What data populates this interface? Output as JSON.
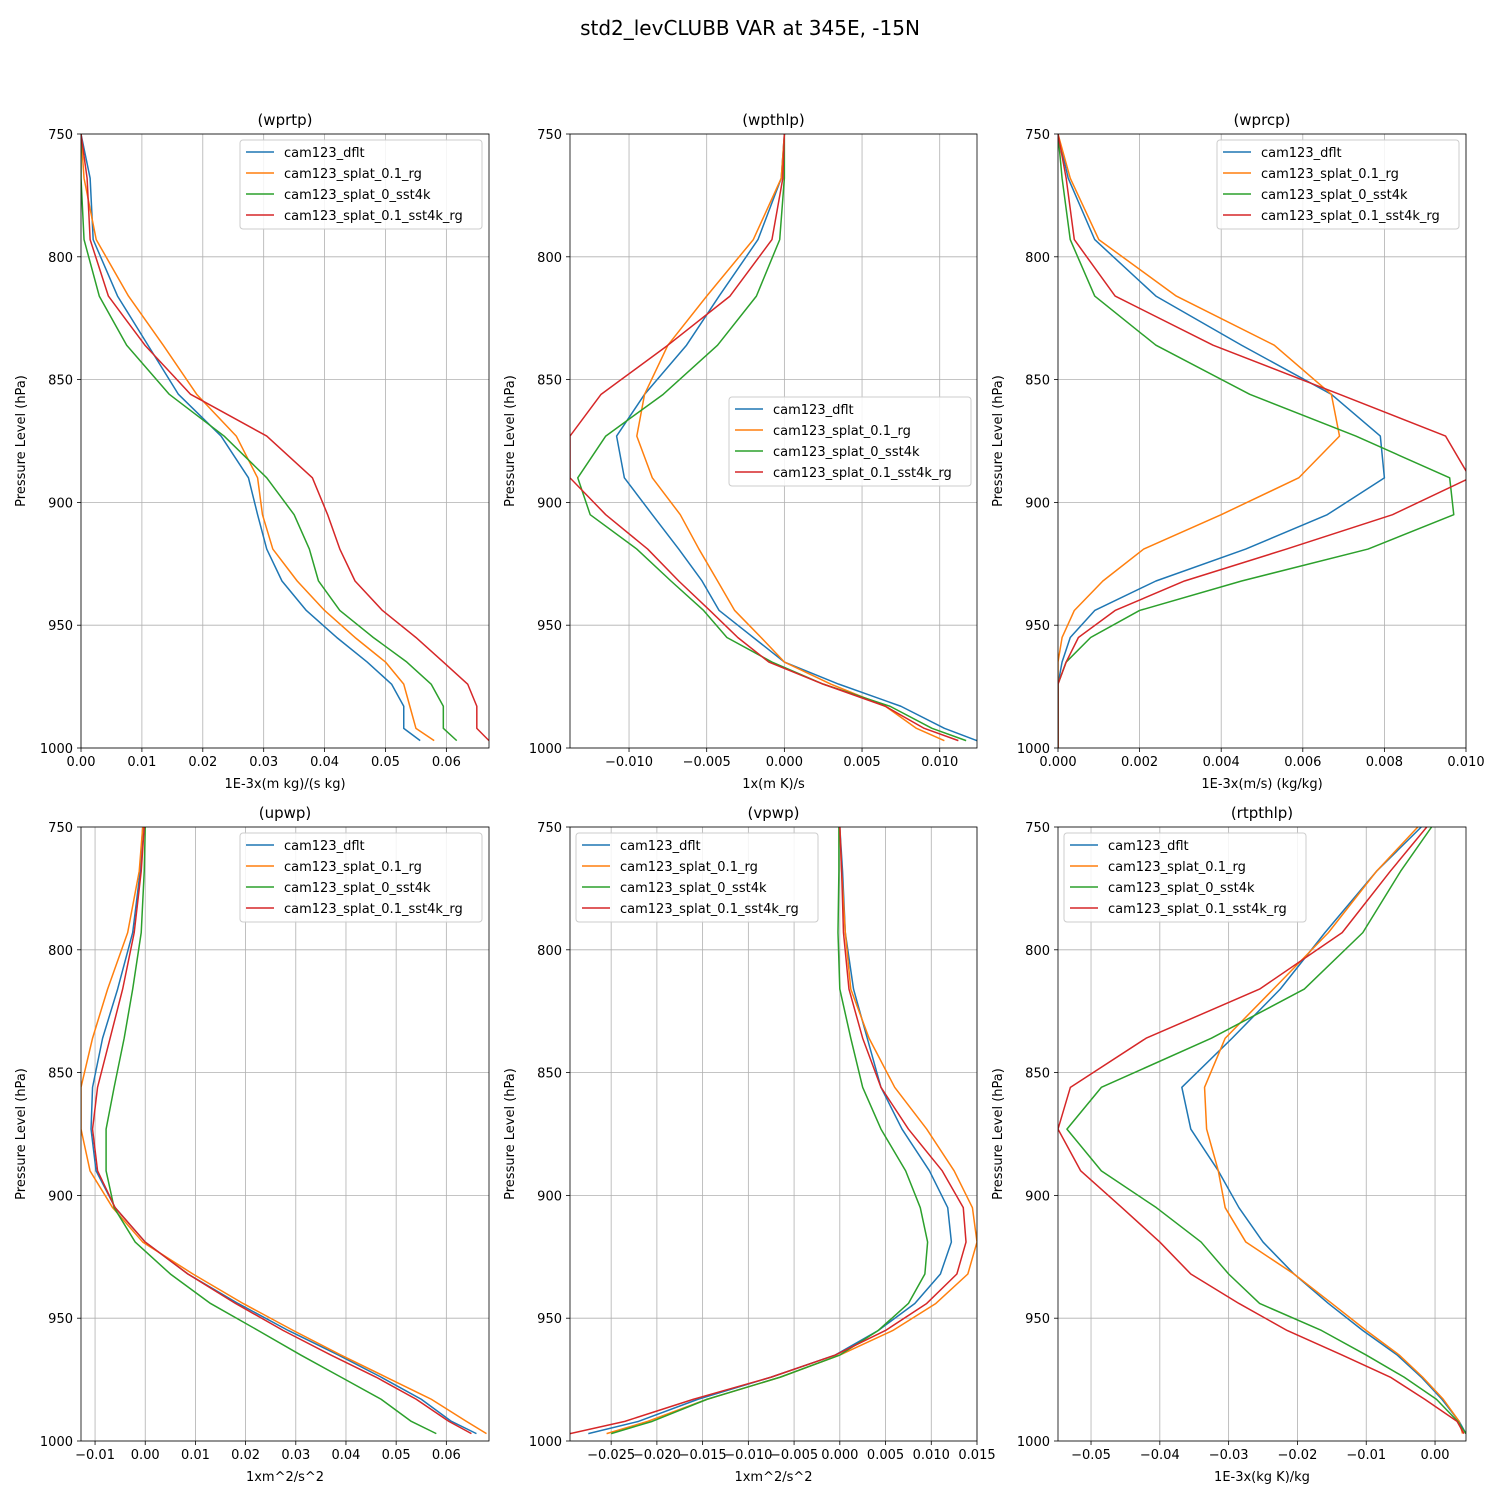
{
  "figure": {
    "suptitle": "std2_levCLUBB VAR at 345E, -15N"
  },
  "colors": {
    "cam123_dflt": "#1f77b4",
    "cam123_splat_0.1_rg": "#ff7f0e",
    "cam123_splat_0_sst4k": "#2ca02c",
    "cam123_splat_0.1_sst4k_rg": "#d62728"
  },
  "chart_data": [
    {
      "type": "line",
      "title": "(wprtp)",
      "xlabel": "1E-3x(m kg)/(s kg)",
      "ylabel": "Pressure Level (hPa)",
      "xlim": [
        0,
        0.067
      ],
      "ylim": [
        1000,
        750
      ],
      "xticks": [
        0,
        0.01,
        0.02,
        0.03,
        0.04,
        0.05,
        0.06
      ],
      "xtick_labels": [
        "0.00",
        "0.01",
        "0.02",
        "0.03",
        "0.04",
        "0.05",
        "0.06"
      ],
      "yticks": [
        750,
        800,
        850,
        900,
        950,
        1000
      ],
      "ytick_labels": [
        "750",
        "800",
        "850",
        "900",
        "950",
        "1000"
      ],
      "grid": true,
      "legend": "top-right",
      "levels": [
        750,
        768,
        793,
        816,
        836,
        856,
        873,
        890,
        905,
        919,
        932,
        944,
        955,
        965,
        974,
        983,
        992,
        997
      ],
      "series": [
        {
          "name": "cam123_dflt",
          "x": [
            0.0,
            0.0015,
            0.002,
            0.006,
            0.011,
            0.016,
            0.023,
            0.0275,
            0.029,
            0.0305,
            0.033,
            0.037,
            0.042,
            0.047,
            0.051,
            0.053,
            0.053,
            0.0557
          ]
        },
        {
          "name": "cam123_splat_0.1_rg",
          "x": [
            0.0,
            0.0005,
            0.0025,
            0.0078,
            0.0135,
            0.019,
            0.0255,
            0.029,
            0.0298,
            0.0315,
            0.0355,
            0.04,
            0.045,
            0.05,
            0.053,
            0.054,
            0.055,
            0.058
          ]
        },
        {
          "name": "cam123_splat_0_sst4k",
          "x": [
            0.0,
            0.0,
            0.0005,
            0.003,
            0.0075,
            0.0145,
            0.0235,
            0.0305,
            0.035,
            0.0375,
            0.039,
            0.0425,
            0.048,
            0.0535,
            0.0575,
            0.0595,
            0.0595,
            0.0617
          ]
        },
        {
          "name": "cam123_splat_0.1_sst4k_rg",
          "x": [
            0.0,
            0.001,
            0.0015,
            0.0045,
            0.0105,
            0.018,
            0.0305,
            0.038,
            0.0405,
            0.0425,
            0.045,
            0.0495,
            0.055,
            0.0595,
            0.0635,
            0.065,
            0.065,
            0.067
          ]
        }
      ]
    },
    {
      "type": "line",
      "title": "(wpthlp)",
      "xlabel": "1x(m K)/s",
      "ylabel": "Pressure Level (hPa)",
      "xlim": [
        -0.0138,
        0.0124
      ],
      "ylim": [
        1000,
        750
      ],
      "xticks": [
        -0.01,
        -0.005,
        0,
        0.005,
        0.01
      ],
      "xtick_labels": [
        "−0.010",
        "−0.005",
        "0.000",
        "0.005",
        "0.010"
      ],
      "yticks": [
        750,
        800,
        850,
        900,
        950,
        1000
      ],
      "ytick_labels": [
        "750",
        "800",
        "850",
        "900",
        "950",
        "1000"
      ],
      "grid": true,
      "legend": "center-right",
      "levels": [
        750,
        768,
        793,
        816,
        836,
        856,
        873,
        890,
        905,
        919,
        932,
        944,
        955,
        965,
        974,
        983,
        992,
        997
      ],
      "series": [
        {
          "name": "cam123_dflt",
          "x": [
            0.0,
            -0.0002,
            -0.0017,
            -0.0042,
            -0.0063,
            -0.009,
            -0.0108,
            -0.0103,
            -0.0085,
            -0.0068,
            -0.0053,
            -0.0042,
            -0.002,
            0.0,
            0.0035,
            0.0075,
            0.0103,
            0.0124
          ]
        },
        {
          "name": "cam123_splat_0.1_rg",
          "x": [
            0.0,
            -0.0002,
            -0.002,
            -0.005,
            -0.0075,
            -0.009,
            -0.0095,
            -0.0085,
            -0.0067,
            -0.0055,
            -0.0043,
            -0.0032,
            -0.0015,
            0.0,
            0.003,
            0.0065,
            0.0085,
            0.0103
          ]
        },
        {
          "name": "cam123_splat_0_sst4k",
          "x": [
            0.0,
            0.0,
            -0.0003,
            -0.0018,
            -0.0043,
            -0.0078,
            -0.0115,
            -0.0133,
            -0.0125,
            -0.0095,
            -0.0073,
            -0.0052,
            -0.0037,
            -0.0008,
            0.0025,
            0.0068,
            0.0095,
            0.0117
          ]
        },
        {
          "name": "cam123_splat_0.1_sst4k_rg",
          "x": [
            0.0,
            -0.0001,
            -0.0008,
            -0.0035,
            -0.0075,
            -0.0118,
            -0.0138,
            -0.0138,
            -0.0115,
            -0.0088,
            -0.0068,
            -0.0048,
            -0.003,
            -0.001,
            0.0025,
            0.0065,
            0.009,
            0.0112
          ]
        }
      ]
    },
    {
      "type": "line",
      "title": "(wprcp)",
      "xlabel": "1E-3x(m/s) (kg/kg)",
      "ylabel": "Pressure Level (hPa)",
      "xlim": [
        0,
        0.01
      ],
      "ylim": [
        1000,
        750
      ],
      "xticks": [
        0,
        0.002,
        0.004,
        0.006,
        0.008,
        0.01
      ],
      "xtick_labels": [
        "0.000",
        "0.002",
        "0.004",
        "0.006",
        "0.008",
        "0.010"
      ],
      "yticks": [
        750,
        800,
        850,
        900,
        950,
        1000
      ],
      "ytick_labels": [
        "750",
        "800",
        "850",
        "900",
        "950",
        "1000"
      ],
      "grid": true,
      "legend": "top-right",
      "levels": [
        750,
        768,
        793,
        816,
        836,
        856,
        873,
        890,
        905,
        919,
        932,
        944,
        955,
        965,
        974,
        983,
        992,
        997,
        1000
      ],
      "series": [
        {
          "name": "cam123_dflt",
          "x": [
            0.0,
            0.00025,
            0.0009,
            0.0024,
            0.0045,
            0.0067,
            0.0079,
            0.008,
            0.0066,
            0.0046,
            0.0024,
            0.0009,
            0.0003,
            0.0001,
            0.0,
            0.0,
            0.0,
            0.0,
            0.0
          ]
        },
        {
          "name": "cam123_splat_0.1_rg",
          "x": [
            0.0,
            0.0003,
            0.001,
            0.0029,
            0.0053,
            0.0067,
            0.0069,
            0.0059,
            0.004,
            0.0021,
            0.0011,
            0.0004,
            0.0001,
            0.0,
            0.0,
            0.0,
            0.0,
            0.0,
            0.0
          ]
        },
        {
          "name": "cam123_splat_0_sst4k",
          "x": [
            0.0,
            0.0001,
            0.0003,
            0.0009,
            0.0024,
            0.0047,
            0.0073,
            0.0096,
            0.0097,
            0.0076,
            0.0045,
            0.002,
            0.0008,
            0.0002,
            0.0,
            0.0,
            0.0,
            0.0,
            0.0
          ]
        },
        {
          "name": "cam123_splat_0.1_sst4k_rg",
          "x": [
            0.0,
            0.0002,
            0.0004,
            0.0014,
            0.0038,
            0.0069,
            0.0095,
            0.0101,
            0.0082,
            0.0056,
            0.0031,
            0.0014,
            0.0005,
            0.0002,
            0.0,
            0.0,
            0.0,
            0.0,
            0.0
          ]
        }
      ]
    },
    {
      "type": "line",
      "title": "(upwp)",
      "xlabel": "1xm^2/s^2",
      "ylabel": "Pressure Level (hPa)",
      "xlim": [
        -0.0128,
        0.0685
      ],
      "ylim": [
        1000,
        750
      ],
      "xticks": [
        -0.01,
        0,
        0.01,
        0.02,
        0.03,
        0.04,
        0.05,
        0.06
      ],
      "xtick_labels": [
        "−0.01",
        "0.00",
        "0.01",
        "0.02",
        "0.03",
        "0.04",
        "0.05",
        "0.06"
      ],
      "yticks": [
        750,
        800,
        850,
        900,
        950,
        1000
      ],
      "ytick_labels": [
        "750",
        "800",
        "850",
        "900",
        "950",
        "1000"
      ],
      "grid": true,
      "legend": "top-right",
      "levels": [
        750,
        768,
        793,
        816,
        836,
        856,
        873,
        890,
        905,
        919,
        932,
        944,
        955,
        965,
        974,
        983,
        992,
        997
      ],
      "series": [
        {
          "name": "cam123_dflt",
          "x": [
            -0.0005,
            -0.001,
            -0.0025,
            -0.0055,
            -0.0085,
            -0.0105,
            -0.0108,
            -0.0098,
            -0.006,
            0.0,
            0.0085,
            0.0185,
            0.0285,
            0.0385,
            0.047,
            0.055,
            0.061,
            0.066
          ]
        },
        {
          "name": "cam123_splat_0.1_rg",
          "x": [
            -0.0005,
            -0.0012,
            -0.0035,
            -0.0075,
            -0.0105,
            -0.0128,
            -0.0128,
            -0.011,
            -0.0065,
            -0.0005,
            0.0095,
            0.0195,
            0.0295,
            0.039,
            0.048,
            0.057,
            0.064,
            0.068
          ]
        },
        {
          "name": "cam123_splat_0_sst4k",
          "x": [
            0.0,
            -0.0002,
            -0.0008,
            -0.0025,
            -0.0042,
            -0.0062,
            -0.0078,
            -0.0078,
            -0.0062,
            -0.002,
            0.005,
            0.013,
            0.0225,
            0.031,
            0.039,
            0.047,
            0.053,
            0.058
          ]
        },
        {
          "name": "cam123_splat_0.1_sst4k_rg",
          "x": [
            -0.0002,
            -0.0008,
            -0.0022,
            -0.0045,
            -0.007,
            -0.0095,
            -0.0105,
            -0.0095,
            -0.006,
            0.0,
            0.0085,
            0.018,
            0.0275,
            0.037,
            0.046,
            0.054,
            0.0605,
            0.065
          ]
        }
      ]
    },
    {
      "type": "line",
      "title": "(vpwp)",
      "xlabel": "1xm^2/s^2",
      "ylabel": "Pressure Level (hPa)",
      "xlim": [
        -0.0295,
        0.015
      ],
      "ylim": [
        1000,
        750
      ],
      "xticks": [
        -0.025,
        -0.02,
        -0.015,
        -0.01,
        -0.005,
        0,
        0.005,
        0.01,
        0.015
      ],
      "xtick_labels": [
        "−0.025",
        "−0.020",
        "−0.015",
        "−0.010",
        "−0.005",
        "0.000",
        "0.005",
        "0.010",
        "0.015"
      ],
      "yticks": [
        750,
        800,
        850,
        900,
        950,
        1000
      ],
      "ytick_labels": [
        "750",
        "800",
        "850",
        "900",
        "950",
        "1000"
      ],
      "grid": true,
      "legend": "top-left",
      "levels": [
        750,
        768,
        793,
        816,
        836,
        856,
        873,
        890,
        905,
        919,
        932,
        944,
        955,
        965,
        974,
        983,
        992,
        997
      ],
      "series": [
        {
          "name": "cam123_dflt",
          "x": [
            0.0,
            0.0003,
            0.0006,
            0.0015,
            0.003,
            0.0045,
            0.0068,
            0.0098,
            0.0118,
            0.0122,
            0.011,
            0.0082,
            0.0042,
            -0.0005,
            -0.0075,
            -0.0155,
            -0.022,
            -0.0275
          ]
        },
        {
          "name": "cam123_splat_0.1_rg",
          "x": [
            0.0,
            0.0002,
            0.0006,
            0.0012,
            0.0032,
            0.006,
            0.0095,
            0.0125,
            0.0145,
            0.015,
            0.014,
            0.0105,
            0.0058,
            0.0,
            -0.0065,
            -0.0145,
            -0.021,
            -0.0255
          ]
        },
        {
          "name": "cam123_splat_0_sst4k",
          "x": [
            -0.0001,
            -0.0001,
            -0.0002,
            0.0,
            0.0012,
            0.0025,
            0.0045,
            0.0072,
            0.0088,
            0.0096,
            0.0093,
            0.0075,
            0.0042,
            0.0,
            -0.0065,
            -0.0145,
            -0.0205,
            -0.025
          ]
        },
        {
          "name": "cam123_splat_0.1_sst4k_rg",
          "x": [
            0.0,
            0.0002,
            0.0004,
            0.001,
            0.0025,
            0.0045,
            0.0075,
            0.0112,
            0.0135,
            0.0138,
            0.0128,
            0.0095,
            0.005,
            -0.0005,
            -0.0075,
            -0.016,
            -0.0235,
            -0.0295
          ]
        }
      ]
    },
    {
      "type": "line",
      "title": "(rtpthlp)",
      "xlabel": "1E-3x(kg K)/kg",
      "ylabel": "Pressure Level (hPa)",
      "xlim": [
        -0.0548,
        0.0045
      ],
      "ylim": [
        1000,
        750
      ],
      "xticks": [
        -0.05,
        -0.04,
        -0.03,
        -0.02,
        -0.01,
        0
      ],
      "xtick_labels": [
        "−0.05",
        "−0.04",
        "−0.03",
        "−0.02",
        "−0.01",
        "0.00"
      ],
      "yticks": [
        750,
        800,
        850,
        900,
        950,
        1000
      ],
      "ytick_labels": [
        "750",
        "800",
        "850",
        "900",
        "950",
        "1000"
      ],
      "grid": true,
      "legend": "top-left",
      "levels": [
        750,
        768,
        793,
        816,
        836,
        856,
        873,
        890,
        905,
        919,
        932,
        944,
        955,
        965,
        974,
        983,
        992,
        997
      ],
      "series": [
        {
          "name": "cam123_dflt",
          "x": [
            -0.002,
            -0.0085,
            -0.016,
            -0.0225,
            -0.0295,
            -0.0368,
            -0.0355,
            -0.0315,
            -0.0285,
            -0.025,
            -0.0205,
            -0.0155,
            -0.0105,
            -0.0055,
            -0.002,
            0.001,
            0.0035,
            0.0045
          ]
        },
        {
          "name": "cam123_splat_0.1_rg",
          "x": [
            -0.0025,
            -0.0085,
            -0.0155,
            -0.0235,
            -0.0305,
            -0.0335,
            -0.0332,
            -0.0315,
            -0.0305,
            -0.0275,
            -0.0205,
            -0.015,
            -0.01,
            -0.0052,
            -0.0018,
            0.0012,
            0.0035,
            0.004
          ]
        },
        {
          "name": "cam123_splat_0_sst4k",
          "x": [
            -0.0005,
            -0.005,
            -0.0105,
            -0.019,
            -0.0325,
            -0.0485,
            -0.0535,
            -0.0485,
            -0.0405,
            -0.034,
            -0.03,
            -0.0255,
            -0.0165,
            -0.01,
            -0.0045,
            0.0002,
            0.0033,
            0.0045
          ]
        },
        {
          "name": "cam123_splat_0.1_sst4k_rg",
          "x": [
            -0.0012,
            -0.0065,
            -0.0135,
            -0.0255,
            -0.042,
            -0.053,
            -0.0548,
            -0.0515,
            -0.0455,
            -0.04,
            -0.0355,
            -0.0285,
            -0.0215,
            -0.0135,
            -0.0065,
            -0.0015,
            0.0032,
            0.0042
          ]
        }
      ]
    }
  ]
}
